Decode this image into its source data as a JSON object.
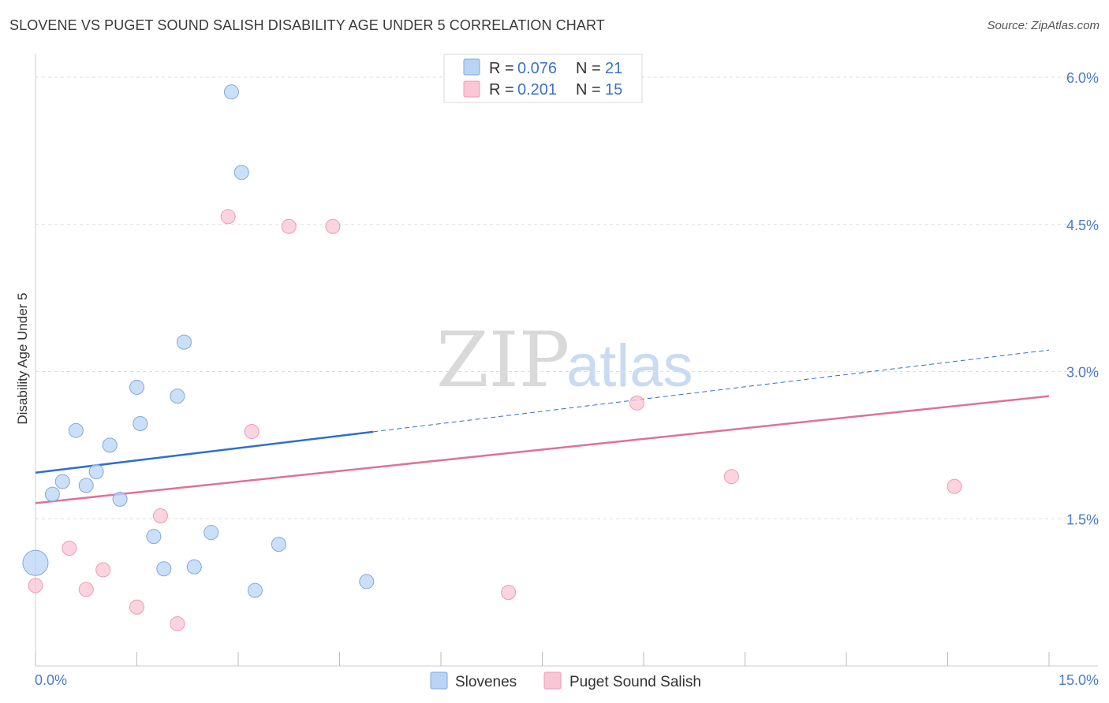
{
  "header": {
    "title": "SLOVENE VS PUGET SOUND SALISH DISABILITY AGE UNDER 5 CORRELATION CHART",
    "source": "Source: ZipAtlas.com"
  },
  "watermark": {
    "zip": "ZIP",
    "atlas": "atlas"
  },
  "legend": {
    "rows": [
      {
        "r_label": "R =",
        "r_value": "0.076",
        "n_label": "N =",
        "n_value": "21"
      },
      {
        "r_label": "R =",
        "r_value": "0.201",
        "n_label": "N =",
        "n_value": "15"
      }
    ]
  },
  "bottom_legend": {
    "items": [
      "Slovenes",
      "Puget Sound Salish"
    ]
  },
  "colors": {
    "slovenes_fill": "#b9d4f5",
    "slovenes_stroke": "#7fa9e0",
    "slovenes_line": "#2e6fd0",
    "salish_fill": "#f9c6d4",
    "salish_stroke": "#ee9ab2",
    "salish_line": "#e0709a",
    "grid": "#dddddd",
    "tick_text": "#4a7cc9"
  },
  "chart_data": {
    "type": "scatter",
    "title": "SLOVENE VS PUGET SOUND SALISH DISABILITY AGE UNDER 5 CORRELATION CHART",
    "xlabel": "",
    "ylabel": "Disability Age Under 5",
    "xlim": [
      0,
      15
    ],
    "ylim": [
      0,
      6.25
    ],
    "x_tick_labels": [
      "0.0%",
      "15.0%"
    ],
    "y_ticks": [
      1.5,
      3.0,
      4.5,
      6.0
    ],
    "y_tick_labels": [
      "1.5%",
      "3.0%",
      "4.5%",
      "6.0%"
    ],
    "grid": true,
    "legend_position": "top-center",
    "series": [
      {
        "name": "Slovenes",
        "r": 0.076,
        "n": 21,
        "points": [
          [
            0.0,
            1.05,
            16
          ],
          [
            0.25,
            1.75,
            9
          ],
          [
            0.4,
            1.88,
            9
          ],
          [
            0.6,
            2.4,
            9
          ],
          [
            0.75,
            1.84,
            9
          ],
          [
            0.9,
            1.98,
            9
          ],
          [
            1.1,
            2.25,
            9
          ],
          [
            1.25,
            1.7,
            9
          ],
          [
            1.5,
            2.84,
            9
          ],
          [
            1.55,
            2.47,
            9
          ],
          [
            1.75,
            1.32,
            9
          ],
          [
            1.9,
            0.99,
            9
          ],
          [
            2.1,
            2.75,
            9
          ],
          [
            2.2,
            3.3,
            9
          ],
          [
            2.35,
            1.01,
            9
          ],
          [
            2.6,
            1.36,
            9
          ],
          [
            2.9,
            5.85,
            9
          ],
          [
            3.05,
            5.03,
            9
          ],
          [
            3.25,
            0.77,
            9
          ],
          [
            3.6,
            1.24,
            9
          ],
          [
            4.9,
            0.86,
            9
          ]
        ],
        "trend": {
          "x0": 0.0,
          "y0": 1.97,
          "x_solid_end": 5.0,
          "x1": 15.0,
          "y1": 3.22
        }
      },
      {
        "name": "Puget Sound Salish",
        "r": 0.201,
        "n": 15,
        "points": [
          [
            0.0,
            0.82,
            9
          ],
          [
            0.5,
            1.2,
            9
          ],
          [
            0.75,
            0.78,
            9
          ],
          [
            1.0,
            0.98,
            9
          ],
          [
            1.5,
            0.6,
            9
          ],
          [
            1.85,
            1.53,
            9
          ],
          [
            2.1,
            0.43,
            9
          ],
          [
            2.85,
            4.58,
            9
          ],
          [
            3.2,
            2.39,
            9
          ],
          [
            3.75,
            4.48,
            9
          ],
          [
            4.4,
            4.48,
            9
          ],
          [
            7.0,
            0.75,
            9
          ],
          [
            8.9,
            2.68,
            9
          ],
          [
            10.3,
            1.93,
            9
          ],
          [
            13.6,
            1.83,
            9
          ]
        ],
        "trend": {
          "x0": 0.0,
          "y0": 1.66,
          "x1": 15.0,
          "y1": 2.75
        }
      }
    ]
  }
}
